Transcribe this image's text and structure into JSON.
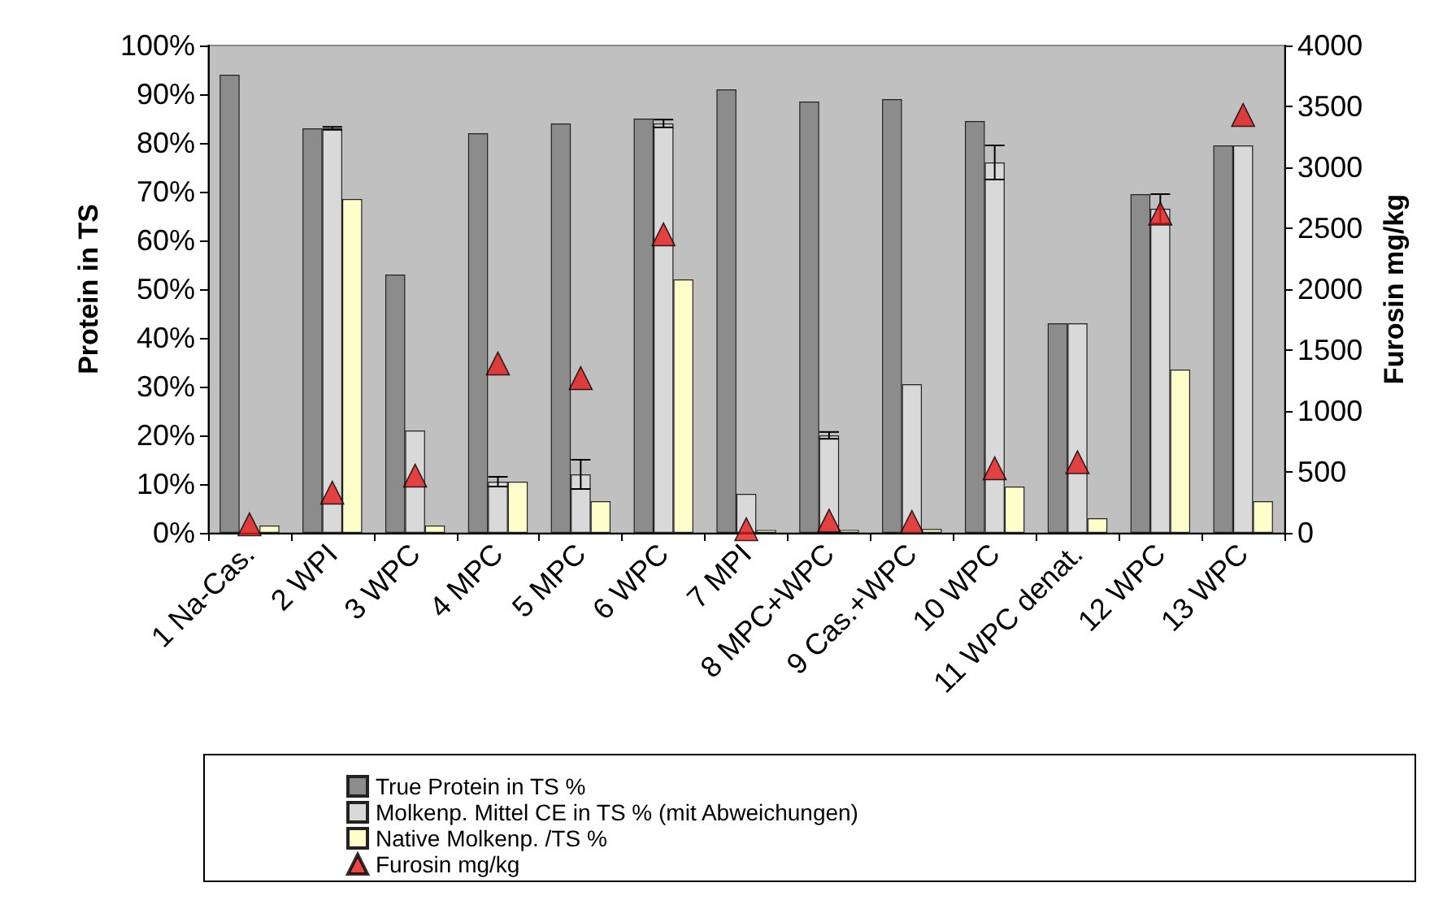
{
  "chart_data": {
    "type": "bar",
    "ylabel": "Protein in TS",
    "y2label": "Furosin mg/kg",
    "categories": [
      "1 Na-Cas.",
      "2 WPI",
      "3 WPC",
      "4 MPC",
      "5 MPC",
      "6 WPC",
      "7 MPI",
      "8 MPC+WPC",
      "9 Cas.+WPC",
      "10 WPC",
      "11 WPC denat.",
      "12 WPC",
      "13 WPC"
    ],
    "series": [
      {
        "name": "True Protein in TS %",
        "color": "#8c8c8c",
        "values": [
          94,
          83,
          53,
          82,
          84,
          85,
          91,
          88.5,
          89,
          84.5,
          43,
          69.5,
          79.5
        ]
      },
      {
        "name": "Molkenp. Mittel CE in TS % (mit Abweichungen)",
        "color": "#d9d9d9",
        "values": [
          null,
          83,
          21,
          10.5,
          12,
          84,
          8,
          20,
          30.5,
          76,
          43,
          66.5,
          79.5
        ],
        "errors": [
          null,
          0.3,
          null,
          1,
          3,
          0.8,
          null,
          0.7,
          null,
          3.5,
          null,
          3,
          null
        ]
      },
      {
        "name": "Native Molkenp. /TS %",
        "color": "#ffffcc",
        "values": [
          1.5,
          68.5,
          1.5,
          10.5,
          6.5,
          52,
          0.6,
          0.6,
          0.8,
          9.5,
          3,
          33.5,
          6.5
        ]
      },
      {
        "name": "Furosin mg/kg",
        "type": "scatter",
        "axis": "y2",
        "color": "#e31a1c",
        "marker": "triangle",
        "values": [
          70,
          330,
          470,
          1390,
          1270,
          2450,
          30,
          100,
          90,
          530,
          580,
          2620,
          3430
        ]
      }
    ],
    "ylim": [
      0,
      100
    ],
    "yticks": [
      {
        "value": 0,
        "label": "0%"
      },
      {
        "value": 10,
        "label": "10%"
      },
      {
        "value": 20,
        "label": "20%"
      },
      {
        "value": 30,
        "label": "30%"
      },
      {
        "value": 40,
        "label": "40%"
      },
      {
        "value": 50,
        "label": "50%"
      },
      {
        "value": 60,
        "label": "60%"
      },
      {
        "value": 70,
        "label": "70%"
      },
      {
        "value": 80,
        "label": "80%"
      },
      {
        "value": 90,
        "label": "90%"
      },
      {
        "value": 100,
        "label": "100%"
      }
    ],
    "y2lim": [
      0,
      4000
    ],
    "y2ticks": [
      0,
      500,
      1000,
      1500,
      2000,
      2500,
      3000,
      3500,
      4000
    ],
    "grid": false,
    "legend": "bottom"
  }
}
